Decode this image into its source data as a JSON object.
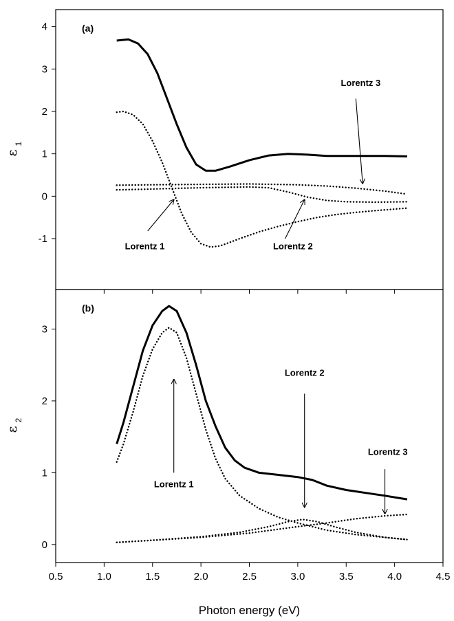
{
  "chart_data": [
    {
      "type": "line",
      "panel_label": "(a)",
      "ylabel_symbol": "ε",
      "ylabel_sub": "1",
      "xlim": [
        0.5,
        4.5
      ],
      "ylim": [
        -2.2,
        4.4
      ],
      "xticks": [
        0.5,
        1.0,
        1.5,
        2.0,
        2.5,
        3.0,
        3.5,
        4.0,
        4.5
      ],
      "xtick_labels": [
        "",
        "",
        "",
        "",
        "",
        "",
        "",
        "",
        ""
      ],
      "yticks": [
        -1,
        0,
        1,
        2,
        3,
        4
      ],
      "ytick_labels": [
        "-1",
        "0",
        "1",
        "2",
        "3",
        "4"
      ],
      "series": [
        {
          "style": "solid",
          "points": [
            [
              1.13,
              3.67
            ],
            [
              1.25,
              3.7
            ],
            [
              1.35,
              3.6
            ],
            [
              1.45,
              3.35
            ],
            [
              1.55,
              2.9
            ],
            [
              1.65,
              2.3
            ],
            [
              1.75,
              1.7
            ],
            [
              1.85,
              1.15
            ],
            [
              1.95,
              0.75
            ],
            [
              2.05,
              0.6
            ],
            [
              2.15,
              0.6
            ],
            [
              2.3,
              0.7
            ],
            [
              2.5,
              0.85
            ],
            [
              2.7,
              0.96
            ],
            [
              2.9,
              1.0
            ],
            [
              3.1,
              0.98
            ],
            [
              3.3,
              0.95
            ],
            [
              3.5,
              0.95
            ],
            [
              3.7,
              0.95
            ],
            [
              3.9,
              0.95
            ],
            [
              4.13,
              0.94
            ]
          ]
        },
        {
          "style": "dotted",
          "points": [
            [
              1.13,
              1.98
            ],
            [
              1.2,
              2.0
            ],
            [
              1.3,
              1.92
            ],
            [
              1.4,
              1.7
            ],
            [
              1.5,
              1.3
            ],
            [
              1.6,
              0.8
            ],
            [
              1.7,
              0.2
            ],
            [
              1.8,
              -0.4
            ],
            [
              1.9,
              -0.85
            ],
            [
              2.0,
              -1.12
            ],
            [
              2.1,
              -1.2
            ],
            [
              2.2,
              -1.17
            ],
            [
              2.4,
              -1.0
            ],
            [
              2.6,
              -0.84
            ],
            [
              2.8,
              -0.71
            ],
            [
              3.0,
              -0.6
            ],
            [
              3.2,
              -0.5
            ],
            [
              3.4,
              -0.43
            ],
            [
              3.6,
              -0.38
            ],
            [
              3.8,
              -0.34
            ],
            [
              4.13,
              -0.28
            ]
          ]
        },
        {
          "style": "dotted",
          "points": [
            [
              1.13,
              0.15
            ],
            [
              1.5,
              0.17
            ],
            [
              2.0,
              0.2
            ],
            [
              2.5,
              0.22
            ],
            [
              2.7,
              0.2
            ],
            [
              2.9,
              0.1
            ],
            [
              3.1,
              -0.02
            ],
            [
              3.3,
              -0.1
            ],
            [
              3.5,
              -0.13
            ],
            [
              3.8,
              -0.14
            ],
            [
              4.13,
              -0.13
            ]
          ]
        },
        {
          "style": "dotted",
          "points": [
            [
              1.13,
              0.26
            ],
            [
              1.5,
              0.27
            ],
            [
              2.0,
              0.28
            ],
            [
              2.5,
              0.29
            ],
            [
              3.0,
              0.27
            ],
            [
              3.3,
              0.24
            ],
            [
              3.6,
              0.19
            ],
            [
              3.9,
              0.12
            ],
            [
              4.13,
              0.05
            ]
          ]
        }
      ],
      "annotations": [
        {
          "text": "Lorentz 1",
          "tx": 1.42,
          "ty": -1.25,
          "ax0": 1.45,
          "ay0": -0.82,
          "ax1": 1.72,
          "ay1": -0.08
        },
        {
          "text": "Lorentz 2",
          "tx": 2.95,
          "ty": -1.25,
          "ax0": 2.87,
          "ay0": -1.0,
          "ax1": 3.07,
          "ay1": -0.08
        },
        {
          "text": "Lorentz 3",
          "tx": 3.65,
          "ty": 2.6,
          "ax0": 3.6,
          "ay0": 2.3,
          "ax1": 3.67,
          "ay1": 0.3
        }
      ]
    },
    {
      "type": "line",
      "panel_label": "(b)",
      "ylabel_symbol": "ε",
      "ylabel_sub": "2",
      "xlabel": "Photon energy (eV)",
      "xlim": [
        0.5,
        4.5
      ],
      "ylim": [
        -0.25,
        3.55
      ],
      "xticks": [
        0.5,
        1.0,
        1.5,
        2.0,
        2.5,
        3.0,
        3.5,
        4.0,
        4.5
      ],
      "xtick_labels": [
        "0.5",
        "1.0",
        "1.5",
        "2.0",
        "2.5",
        "3.0",
        "3.5",
        "4.0",
        "4.5"
      ],
      "yticks": [
        0,
        1,
        2,
        3
      ],
      "ytick_labels": [
        "0",
        "1",
        "2",
        "3"
      ],
      "series": [
        {
          "style": "solid",
          "points": [
            [
              1.13,
              1.4
            ],
            [
              1.2,
              1.7
            ],
            [
              1.3,
              2.2
            ],
            [
              1.4,
              2.7
            ],
            [
              1.5,
              3.05
            ],
            [
              1.6,
              3.25
            ],
            [
              1.67,
              3.32
            ],
            [
              1.75,
              3.25
            ],
            [
              1.85,
              2.95
            ],
            [
              1.95,
              2.5
            ],
            [
              2.05,
              2.0
            ],
            [
              2.15,
              1.65
            ],
            [
              2.25,
              1.35
            ],
            [
              2.35,
              1.17
            ],
            [
              2.45,
              1.07
            ],
            [
              2.6,
              1.0
            ],
            [
              2.8,
              0.97
            ],
            [
              3.0,
              0.94
            ],
            [
              3.15,
              0.9
            ],
            [
              3.3,
              0.82
            ],
            [
              3.5,
              0.76
            ],
            [
              3.7,
              0.72
            ],
            [
              3.9,
              0.68
            ],
            [
              4.13,
              0.63
            ]
          ]
        },
        {
          "style": "dotted",
          "points": [
            [
              1.13,
              1.15
            ],
            [
              1.2,
              1.4
            ],
            [
              1.3,
              1.85
            ],
            [
              1.4,
              2.35
            ],
            [
              1.5,
              2.72
            ],
            [
              1.6,
              2.95
            ],
            [
              1.67,
              3.02
            ],
            [
              1.75,
              2.95
            ],
            [
              1.85,
              2.6
            ],
            [
              1.95,
              2.1
            ],
            [
              2.05,
              1.6
            ],
            [
              2.15,
              1.2
            ],
            [
              2.25,
              0.92
            ],
            [
              2.4,
              0.68
            ],
            [
              2.6,
              0.5
            ],
            [
              2.8,
              0.38
            ],
            [
              3.0,
              0.3
            ],
            [
              3.3,
              0.2
            ],
            [
              3.6,
              0.14
            ],
            [
              3.9,
              0.1
            ],
            [
              4.13,
              0.07
            ]
          ]
        },
        {
          "style": "dotted",
          "points": [
            [
              1.13,
              0.03
            ],
            [
              1.5,
              0.06
            ],
            [
              2.0,
              0.11
            ],
            [
              2.4,
              0.17
            ],
            [
              2.7,
              0.25
            ],
            [
              2.9,
              0.32
            ],
            [
              3.05,
              0.35
            ],
            [
              3.2,
              0.32
            ],
            [
              3.4,
              0.24
            ],
            [
              3.6,
              0.17
            ],
            [
              3.9,
              0.1
            ],
            [
              4.13,
              0.07
            ]
          ]
        },
        {
          "style": "dotted",
          "points": [
            [
              1.13,
              0.03
            ],
            [
              1.5,
              0.06
            ],
            [
              2.0,
              0.1
            ],
            [
              2.5,
              0.16
            ],
            [
              3.0,
              0.25
            ],
            [
              3.3,
              0.3
            ],
            [
              3.6,
              0.36
            ],
            [
              3.9,
              0.4
            ],
            [
              4.13,
              0.42
            ]
          ]
        }
      ],
      "annotations": [
        {
          "text": "Lorentz 1",
          "tx": 1.72,
          "ty": 0.8,
          "ax0": 1.72,
          "ay0": 1.0,
          "ax1": 1.72,
          "ay1": 2.3
        },
        {
          "text": "Lorentz 2",
          "tx": 3.07,
          "ty": 2.35,
          "ax0": 3.07,
          "ay0": 2.1,
          "ax1": 3.07,
          "ay1": 0.52
        },
        {
          "text": "Lorentz 3",
          "tx": 3.93,
          "ty": 1.25,
          "ax0": 3.9,
          "ay0": 1.05,
          "ax1": 3.9,
          "ay1": 0.43
        }
      ]
    }
  ]
}
